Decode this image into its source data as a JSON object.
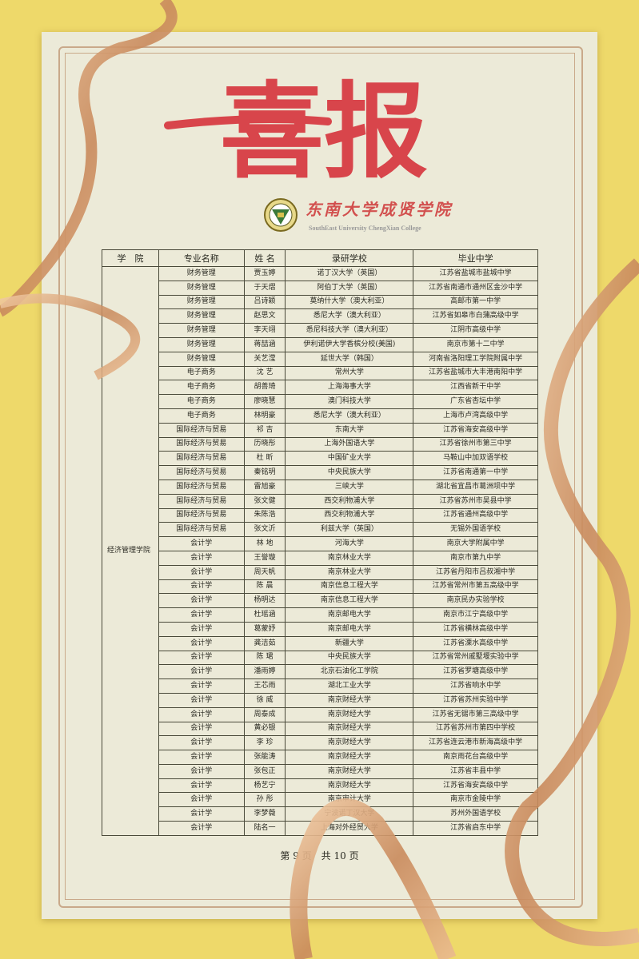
{
  "title": "喜报",
  "college": {
    "name_cn": "东南大学成贤学院",
    "name_en": "SouthEast University ChengXian College"
  },
  "table": {
    "headers": [
      "学　院",
      "专业名称",
      "姓 名",
      "录研学校",
      "毕业中学"
    ],
    "department": "经济管理学院",
    "rows": [
      [
        "财务管理",
        "贾玉婷",
        "诺丁汉大学（英国）",
        "江苏省盐城市盐城中学"
      ],
      [
        "财务管理",
        "于天熠",
        "阿伯丁大学（英国）",
        "江苏省南通市通州区金沙中学"
      ],
      [
        "财务管理",
        "吕诗颖",
        "莫纳什大学（澳大利亚）",
        "高邮市第一中学"
      ],
      [
        "财务管理",
        "赵思文",
        "悉尼大学（澳大利亚）",
        "江苏省如皋市白蒲高级中学"
      ],
      [
        "财务管理",
        "李天翊",
        "悉尼科技大学（澳大利亚）",
        "江阴市高级中学"
      ],
      [
        "财务管理",
        "蒋喆涵",
        "伊利诺伊大学香槟分校(美国)",
        "南京市第十二中学"
      ],
      [
        "财务管理",
        "关艺滢",
        "延世大学（韩国）",
        "河南省洛阳理工学院附属中学"
      ],
      [
        "电子商务",
        "沈 艺",
        "常州大学",
        "江苏省盐城市大丰港南阳中学"
      ],
      [
        "电子商务",
        "胡善琦",
        "上海海事大学",
        "江西省新干中学"
      ],
      [
        "电子商务",
        "廖晓慧",
        "澳门科技大学",
        "广东省杏坛中学"
      ],
      [
        "电子商务",
        "林明豪",
        "悉尼大学（澳大利亚）",
        "上海市卢湾高级中学"
      ],
      [
        "国际经济与贸易",
        "祁 吉",
        "东南大学",
        "江苏省海安高级中学"
      ],
      [
        "国际经济与贸易",
        "历晓彤",
        "上海外国语大学",
        "江苏省徐州市第三中学"
      ],
      [
        "国际经济与贸易",
        "杜 昕",
        "中国矿业大学",
        "马鞍山中加双语学校"
      ],
      [
        "国际经济与贸易",
        "秦铭玥",
        "中央民族大学",
        "江苏省南通第一中学"
      ],
      [
        "国际经济与贸易",
        "雷旭豪",
        "三峡大学",
        "湖北省宜昌市葛洲坝中学"
      ],
      [
        "国际经济与贸易",
        "张文健",
        "西交利物浦大学",
        "江苏省苏州市吴县中学"
      ],
      [
        "国际经济与贸易",
        "朱陈浩",
        "西交利物浦大学",
        "江苏省通州高级中学"
      ],
      [
        "国际经济与贸易",
        "张文沂",
        "利兹大学（英国）",
        "无锡外国语学校"
      ],
      [
        "会计学",
        "林 地",
        "河海大学",
        "南京大学附属中学"
      ],
      [
        "会计学",
        "王誉璇",
        "南京林业大学",
        "南京市第九中学"
      ],
      [
        "会计学",
        "周天帆",
        "南京林业大学",
        "江苏省丹阳市吕叔湘中学"
      ],
      [
        "会计学",
        "陈 晨",
        "南京信息工程大学",
        "江苏省常州市第五高级中学"
      ],
      [
        "会计学",
        "杨明达",
        "南京信息工程大学",
        "南京民办实验学校"
      ],
      [
        "会计学",
        "杜瑶涵",
        "南京邮电大学",
        "南京市江宁高级中学"
      ],
      [
        "会计学",
        "葛蒙妤",
        "南京邮电大学",
        "江苏省横林高级中学"
      ],
      [
        "会计学",
        "龚洁茹",
        "新疆大学",
        "江苏省溧水高级中学"
      ],
      [
        "会计学",
        "陈 珺",
        "中央民族大学",
        "江苏省常州戚墅堰实验中学"
      ],
      [
        "会计学",
        "潘雨婷",
        "北京石油化工学院",
        "江苏省罗塘高级中学"
      ],
      [
        "会计学",
        "王芯雨",
        "湖北工业大学",
        "江苏省响水中学"
      ],
      [
        "会计学",
        "徐 威",
        "南京财经大学",
        "江苏省苏州实验中学"
      ],
      [
        "会计学",
        "周泰成",
        "南京财经大学",
        "江苏省无锡市第三高级中学"
      ],
      [
        "会计学",
        "黄必银",
        "南京财经大学",
        "江苏省苏州市第四中学校"
      ],
      [
        "会计学",
        "李 珍",
        "南京财经大学",
        "江苏省连云港市新海高级中学"
      ],
      [
        "会计学",
        "张能涛",
        "南京财经大学",
        "南京雨花台高级中学"
      ],
      [
        "会计学",
        "张包正",
        "南京财经大学",
        "江苏省丰县中学"
      ],
      [
        "会计学",
        "杨艺宁",
        "南京财经大学",
        "江苏省海安高级中学"
      ],
      [
        "会计学",
        "孙 彤",
        "南京审计大学",
        "南京市金陵中学"
      ],
      [
        "会计学",
        "李梦薇",
        "宁波诺丁汉大学",
        "苏州外国语学校"
      ],
      [
        "会计学",
        "陆名一",
        "上海对外经贸大学",
        "江苏省启东中学"
      ]
    ]
  },
  "footer": {
    "page_label": "第 9 页　共 10 页"
  },
  "colors": {
    "background": "#eed96a",
    "paper": "#ecead8",
    "title_red": "#d8454b",
    "ribbon": "#d9a57a"
  }
}
